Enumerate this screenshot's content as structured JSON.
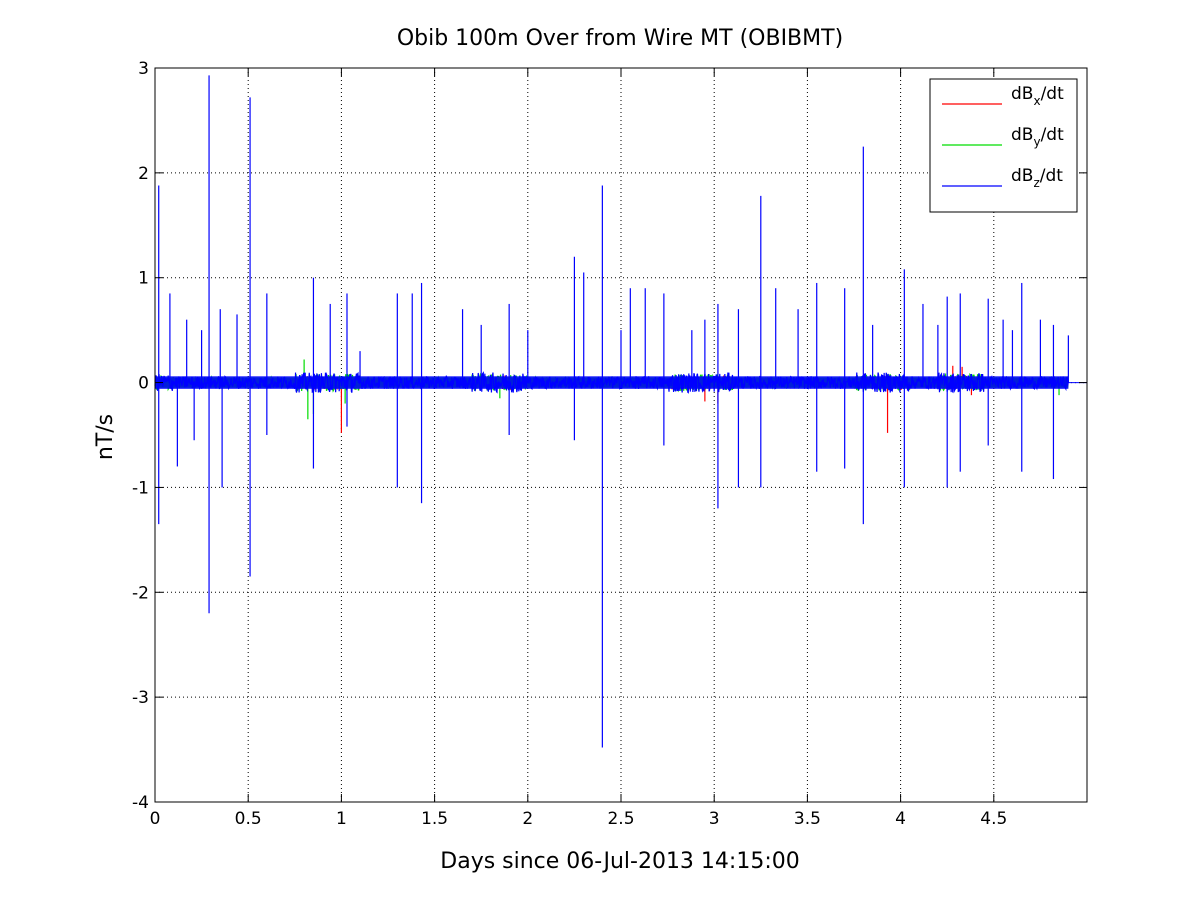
{
  "chart_data": {
    "type": "line",
    "title": "Obib 100m Over from Wire MT (OBIBMT)",
    "xlabel": "Days since 06-Jul-2013 14:15:00",
    "ylabel": "nT/s",
    "xlim": [
      0,
      5.0
    ],
    "ylim": [
      -4,
      3
    ],
    "xticks": [
      0,
      0.5,
      1,
      1.5,
      2,
      2.5,
      3,
      3.5,
      4,
      4.5
    ],
    "xtick_labels": [
      "0",
      "0.5",
      "1",
      "1.5",
      "2",
      "2.5",
      "3",
      "3.5",
      "4",
      "4.5"
    ],
    "yticks": [
      3,
      2,
      1,
      0,
      -1,
      -2,
      -3,
      -4
    ],
    "ytick_labels": [
      "3",
      "2",
      "1",
      "0",
      "-1",
      "-2",
      "-3",
      "-4"
    ],
    "grid": true,
    "legend_position": "top-right",
    "data_end_x": 4.9,
    "series": [
      {
        "name": "dBx/dt",
        "legend_main": "dB",
        "legend_sub": "x",
        "legend_tail": "/dt",
        "color": "#ff0000",
        "baseline_amplitude": 0.04,
        "spikes": [
          {
            "x": 1.0,
            "y": -0.48
          },
          {
            "x": 2.95,
            "y": -0.18
          },
          {
            "x": 3.02,
            "y": -0.2
          },
          {
            "x": 3.93,
            "y": -0.48
          },
          {
            "x": 4.28,
            "y": 0.16
          },
          {
            "x": 4.33,
            "y": 0.15
          },
          {
            "x": 4.38,
            "y": -0.12
          }
        ]
      },
      {
        "name": "dBy/dt",
        "legend_main": "dB",
        "legend_sub": "y",
        "legend_tail": "/dt",
        "color": "#00dd00",
        "baseline_amplitude": 0.05,
        "spikes": [
          {
            "x": 0.8,
            "y": 0.22
          },
          {
            "x": 0.82,
            "y": -0.35
          },
          {
            "x": 0.85,
            "y": -0.3
          },
          {
            "x": 1.02,
            "y": -0.2
          },
          {
            "x": 1.85,
            "y": -0.15
          },
          {
            "x": 4.85,
            "y": -0.12
          }
        ]
      },
      {
        "name": "dBz/dt",
        "legend_main": "dB",
        "legend_sub": "z",
        "legend_tail": "/dt",
        "color": "#0000ff",
        "baseline_amplitude": 0.06,
        "spikes": [
          {
            "x": 0.02,
            "y": 1.88
          },
          {
            "x": 0.02,
            "y": -1.35
          },
          {
            "x": 0.08,
            "y": 0.85
          },
          {
            "x": 0.12,
            "y": -0.8
          },
          {
            "x": 0.17,
            "y": 0.6
          },
          {
            "x": 0.21,
            "y": -0.55
          },
          {
            "x": 0.25,
            "y": 0.5
          },
          {
            "x": 0.29,
            "y": 2.93
          },
          {
            "x": 0.29,
            "y": -2.2
          },
          {
            "x": 0.35,
            "y": 0.7
          },
          {
            "x": 0.36,
            "y": -1.0
          },
          {
            "x": 0.44,
            "y": 0.65
          },
          {
            "x": 0.51,
            "y": 2.72
          },
          {
            "x": 0.51,
            "y": -1.85
          },
          {
            "x": 0.6,
            "y": 0.85
          },
          {
            "x": 0.6,
            "y": -0.5
          },
          {
            "x": 0.85,
            "y": 1.0
          },
          {
            "x": 0.85,
            "y": -0.82
          },
          {
            "x": 0.94,
            "y": 0.75
          },
          {
            "x": 1.03,
            "y": 0.85
          },
          {
            "x": 1.03,
            "y": -0.42
          },
          {
            "x": 1.1,
            "y": 0.3
          },
          {
            "x": 1.3,
            "y": 0.85
          },
          {
            "x": 1.3,
            "y": -1.0
          },
          {
            "x": 1.38,
            "y": 0.85
          },
          {
            "x": 1.43,
            "y": 0.95
          },
          {
            "x": 1.43,
            "y": -1.15
          },
          {
            "x": 1.65,
            "y": 0.7
          },
          {
            "x": 1.75,
            "y": 0.55
          },
          {
            "x": 1.9,
            "y": 0.75
          },
          {
            "x": 1.9,
            "y": -0.5
          },
          {
            "x": 2.0,
            "y": 0.5
          },
          {
            "x": 2.25,
            "y": 1.2
          },
          {
            "x": 2.25,
            "y": -0.55
          },
          {
            "x": 2.3,
            "y": 1.05
          },
          {
            "x": 2.4,
            "y": 1.88
          },
          {
            "x": 2.4,
            "y": -3.48
          },
          {
            "x": 2.5,
            "y": 0.5
          },
          {
            "x": 2.55,
            "y": 0.9
          },
          {
            "x": 2.63,
            "y": 0.9
          },
          {
            "x": 2.73,
            "y": 0.85
          },
          {
            "x": 2.73,
            "y": -0.6
          },
          {
            "x": 2.88,
            "y": 0.5
          },
          {
            "x": 2.95,
            "y": 0.6
          },
          {
            "x": 3.02,
            "y": 0.75
          },
          {
            "x": 3.02,
            "y": -1.2
          },
          {
            "x": 3.13,
            "y": 0.7
          },
          {
            "x": 3.13,
            "y": -1.0
          },
          {
            "x": 3.25,
            "y": 1.78
          },
          {
            "x": 3.25,
            "y": -1.0
          },
          {
            "x": 3.33,
            "y": 0.9
          },
          {
            "x": 3.45,
            "y": 0.7
          },
          {
            "x": 3.55,
            "y": 0.95
          },
          {
            "x": 3.55,
            "y": -0.85
          },
          {
            "x": 3.7,
            "y": 0.9
          },
          {
            "x": 3.7,
            "y": -0.82
          },
          {
            "x": 3.8,
            "y": 2.25
          },
          {
            "x": 3.8,
            "y": -1.35
          },
          {
            "x": 3.85,
            "y": 0.55
          },
          {
            "x": 4.02,
            "y": 1.08
          },
          {
            "x": 4.02,
            "y": -1.0
          },
          {
            "x": 4.12,
            "y": 0.75
          },
          {
            "x": 4.2,
            "y": 0.55
          },
          {
            "x": 4.25,
            "y": 0.82
          },
          {
            "x": 4.25,
            "y": -1.0
          },
          {
            "x": 4.32,
            "y": 0.85
          },
          {
            "x": 4.32,
            "y": -0.85
          },
          {
            "x": 4.47,
            "y": 0.8
          },
          {
            "x": 4.47,
            "y": -0.6
          },
          {
            "x": 4.55,
            "y": 0.6
          },
          {
            "x": 4.6,
            "y": 0.5
          },
          {
            "x": 4.65,
            "y": 0.95
          },
          {
            "x": 4.65,
            "y": -0.85
          },
          {
            "x": 4.75,
            "y": 0.6
          },
          {
            "x": 4.82,
            "y": 0.55
          },
          {
            "x": 4.82,
            "y": -0.92
          },
          {
            "x": 4.9,
            "y": 0.45
          }
        ]
      }
    ]
  }
}
